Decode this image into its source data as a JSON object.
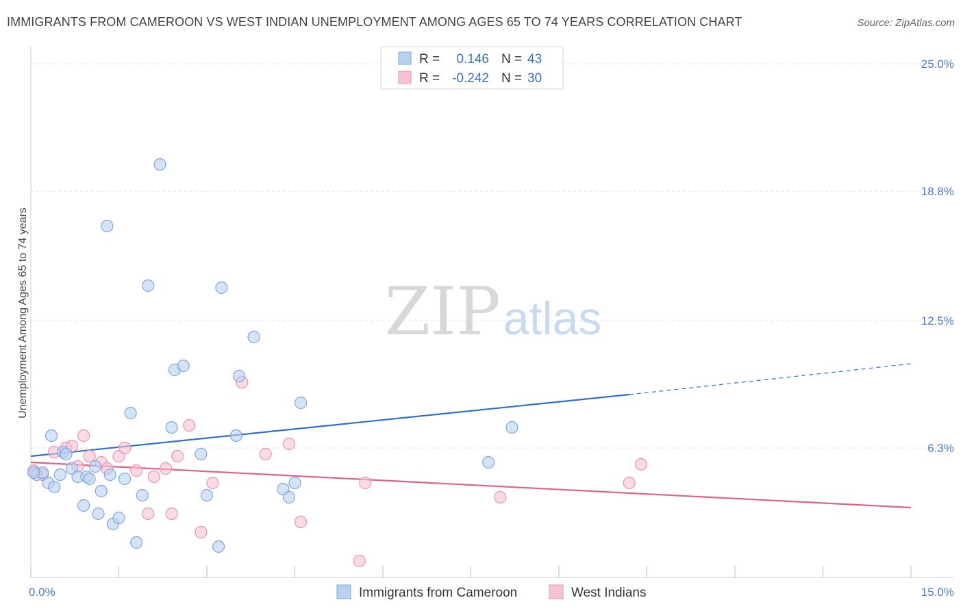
{
  "header": {
    "title": "IMMIGRANTS FROM CAMEROON VS WEST INDIAN UNEMPLOYMENT AMONG AGES 65 TO 74 YEARS CORRELATION CHART",
    "source": "Source: ZipAtlas.com"
  },
  "watermark": {
    "zip": "ZIP",
    "atlas": "atlas"
  },
  "colors": {
    "blue": "#4a7cc4",
    "blue_fill": "#b9d0f0",
    "blue_line": "#2f6fce",
    "pink": "#e87aa0",
    "pink_fill": "#f6c3d4",
    "pink_line": "#e06090",
    "grid": "#e2e2e2"
  },
  "legend": {
    "rows": [
      {
        "r_label": "R =",
        "r_value": "0.146",
        "n_label": "N =",
        "n_value": "43"
      },
      {
        "r_label": "R =",
        "r_value": "-0.242",
        "n_label": "N =",
        "n_value": "30"
      }
    ]
  },
  "chart_data": {
    "type": "scatter",
    "title": "IMMIGRANTS FROM CAMEROON VS WEST INDIAN UNEMPLOYMENT AMONG AGES 65 TO 74 YEARS CORRELATION CHART",
    "xlabel": "",
    "ylabel": "Unemployment Among Ages 65 to 74 years",
    "xlim": [
      0,
      15
    ],
    "ylim": [
      0,
      25.5
    ],
    "x_tick_labels": [
      "0.0%",
      "15.0%"
    ],
    "y_ticks": [
      6.3,
      12.5,
      18.8,
      25.0
    ],
    "y_tick_labels": [
      "6.3%",
      "12.5%",
      "18.8%",
      "25.0%"
    ],
    "grid": true,
    "legend_position": "top-center",
    "series": [
      {
        "name": "Immigrants from Cameroon",
        "trend": {
          "x0": 0,
          "y0": 5.9,
          "x1": 10.2,
          "y1": 8.9,
          "dash_x1": 15,
          "dash_y1": 10.4
        },
        "points": [
          [
            0.1,
            5.0
          ],
          [
            0.2,
            5.1
          ],
          [
            0.3,
            4.6
          ],
          [
            0.35,
            6.9
          ],
          [
            0.4,
            4.4
          ],
          [
            0.5,
            5.0
          ],
          [
            0.55,
            6.1
          ],
          [
            0.6,
            6.0
          ],
          [
            0.7,
            5.3
          ],
          [
            0.8,
            4.9
          ],
          [
            0.9,
            3.5
          ],
          [
            0.95,
            4.9
          ],
          [
            1.0,
            4.8
          ],
          [
            1.1,
            5.4
          ],
          [
            1.15,
            3.1
          ],
          [
            1.2,
            4.2
          ],
          [
            1.3,
            17.1
          ],
          [
            1.35,
            5.0
          ],
          [
            1.4,
            2.6
          ],
          [
            1.5,
            2.9
          ],
          [
            1.6,
            4.8
          ],
          [
            1.7,
            8.0
          ],
          [
            1.8,
            1.7
          ],
          [
            1.9,
            4.0
          ],
          [
            2.0,
            14.2
          ],
          [
            2.2,
            20.1
          ],
          [
            2.4,
            7.3
          ],
          [
            2.45,
            10.1
          ],
          [
            2.6,
            10.3
          ],
          [
            2.9,
            6.0
          ],
          [
            3.0,
            4.0
          ],
          [
            3.2,
            1.5
          ],
          [
            3.25,
            14.1
          ],
          [
            3.5,
            6.9
          ],
          [
            3.55,
            9.8
          ],
          [
            3.8,
            11.7
          ],
          [
            4.3,
            4.3
          ],
          [
            4.4,
            3.9
          ],
          [
            4.5,
            4.6
          ],
          [
            4.6,
            8.5
          ],
          [
            7.8,
            5.6
          ],
          [
            8.2,
            7.3
          ],
          [
            0.05,
            5.1
          ]
        ]
      },
      {
        "name": "West Indians",
        "trend": {
          "x0": 0,
          "y0": 5.6,
          "x1": 15,
          "y1": 3.4
        },
        "points": [
          [
            0.05,
            5.2
          ],
          [
            0.2,
            5.0
          ],
          [
            0.4,
            6.1
          ],
          [
            0.6,
            6.3
          ],
          [
            0.7,
            6.4
          ],
          [
            0.8,
            5.4
          ],
          [
            0.9,
            6.9
          ],
          [
            1.0,
            5.9
          ],
          [
            1.2,
            5.6
          ],
          [
            1.3,
            5.3
          ],
          [
            1.5,
            5.9
          ],
          [
            1.6,
            6.3
          ],
          [
            1.8,
            5.2
          ],
          [
            2.0,
            3.1
          ],
          [
            2.1,
            4.9
          ],
          [
            2.3,
            5.3
          ],
          [
            2.4,
            3.1
          ],
          [
            2.5,
            5.9
          ],
          [
            2.7,
            7.4
          ],
          [
            2.9,
            2.2
          ],
          [
            3.1,
            4.6
          ],
          [
            3.6,
            9.5
          ],
          [
            4.0,
            6.0
          ],
          [
            4.4,
            6.5
          ],
          [
            4.6,
            2.7
          ],
          [
            5.6,
            0.8
          ],
          [
            5.7,
            4.6
          ],
          [
            8.0,
            3.9
          ],
          [
            10.2,
            4.6
          ],
          [
            10.4,
            5.5
          ]
        ]
      }
    ]
  }
}
